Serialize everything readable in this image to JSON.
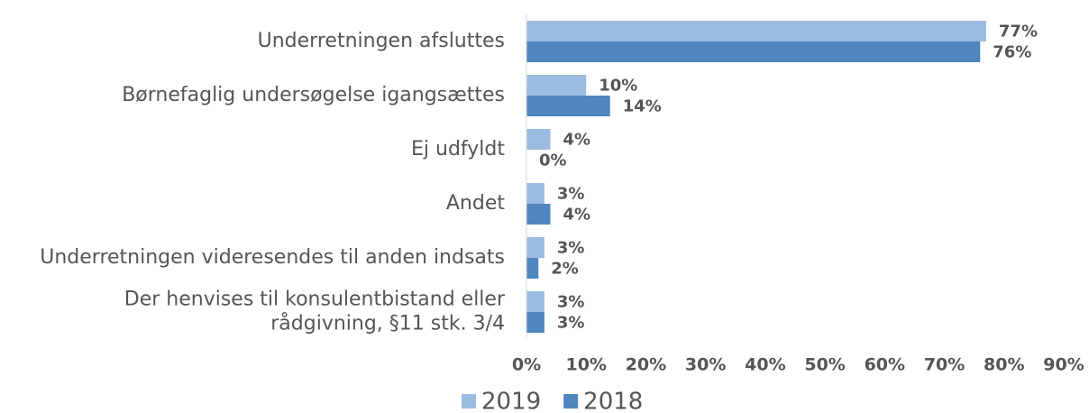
{
  "chart_data": {
    "type": "bar",
    "orientation": "horizontal",
    "categories": [
      "Underretningen afsluttes",
      "Børnefaglig undersøgelse igangsættes",
      "Ej udfyldt",
      "Andet",
      "Underretningen videresendes til anden indsats",
      "Der henvises til konsulentbistand eller\nrådgivning, §11 stk. 3/4"
    ],
    "series": [
      {
        "name": "2019",
        "color": "#9bbbe0",
        "values": [
          77,
          10,
          4,
          3,
          3,
          3
        ],
        "value_labels": [
          "77%",
          "10%",
          "4%",
          "3%",
          "3%",
          "3%"
        ]
      },
      {
        "name": "2018",
        "color": "#4f86bf",
        "values": [
          76,
          14,
          0,
          4,
          2,
          3
        ],
        "value_labels": [
          "76%",
          "14%",
          "0%",
          "4%",
          "2%",
          "3%"
        ]
      }
    ],
    "xlim": [
      0,
      90
    ],
    "xticks": [
      {
        "value": 0,
        "label": "0%"
      },
      {
        "value": 10,
        "label": "10%"
      },
      {
        "value": 20,
        "label": "20%"
      },
      {
        "value": 30,
        "label": "30%"
      },
      {
        "value": 40,
        "label": "40%"
      },
      {
        "value": 50,
        "label": "50%"
      },
      {
        "value": 60,
        "label": "60%"
      },
      {
        "value": 70,
        "label": "70%"
      },
      {
        "value": 80,
        "label": "80%"
      },
      {
        "value": 90,
        "label": "90%"
      }
    ],
    "grid": false,
    "legend": "bottom"
  }
}
